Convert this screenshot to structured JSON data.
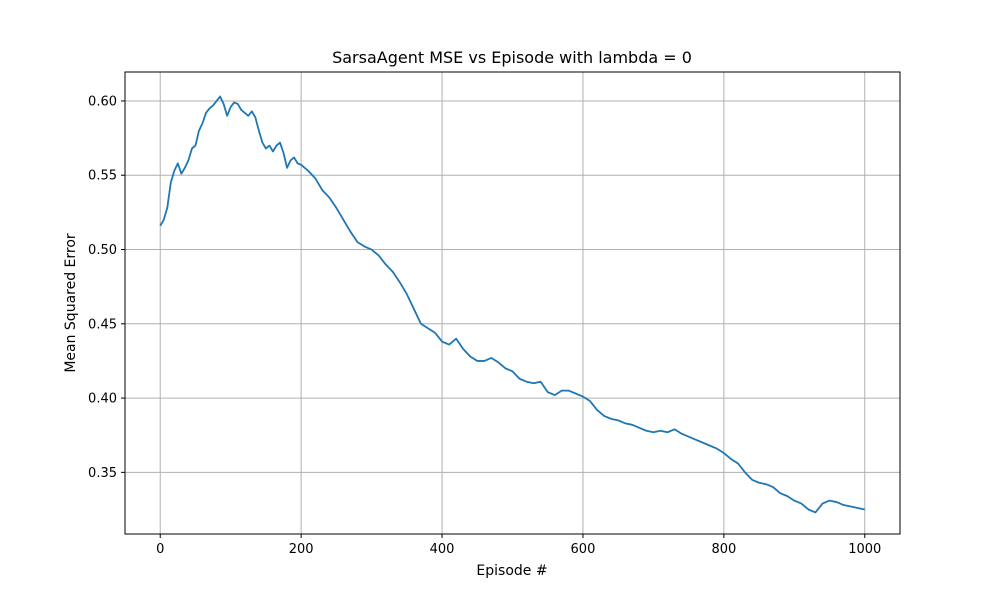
{
  "chart_data": {
    "type": "line",
    "title": "SarsaAgent MSE vs Episode with lambda = 0",
    "xlabel": "Episode #",
    "ylabel": "Mean Squared Error",
    "xlim": [
      -50,
      1050
    ],
    "ylim": [
      0.3085,
      0.6195
    ],
    "xticks": [
      0,
      200,
      400,
      600,
      800,
      1000
    ],
    "xtick_labels": [
      "0",
      "200",
      "400",
      "600",
      "800",
      "1000"
    ],
    "yticks": [
      0.35,
      0.4,
      0.45,
      0.5,
      0.55,
      0.6
    ],
    "ytick_labels": [
      "0.35",
      "0.40",
      "0.45",
      "0.50",
      "0.55",
      "0.60"
    ],
    "grid": true,
    "line_color": "#1f77b4",
    "grid_color": "#b0b0b0",
    "series": [
      {
        "x": [
          0,
          5,
          10,
          15,
          20,
          25,
          30,
          35,
          40,
          45,
          50,
          55,
          60,
          65,
          70,
          75,
          80,
          85,
          90,
          95,
          100,
          105,
          110,
          115,
          120,
          125,
          130,
          135,
          140,
          145,
          150,
          155,
          160,
          165,
          170,
          175,
          180,
          185,
          190,
          195,
          200,
          210,
          220,
          230,
          240,
          250,
          260,
          270,
          280,
          290,
          300,
          310,
          320,
          330,
          340,
          350,
          360,
          370,
          380,
          390,
          400,
          410,
          420,
          430,
          440,
          450,
          460,
          470,
          480,
          490,
          500,
          510,
          520,
          530,
          540,
          550,
          560,
          570,
          580,
          590,
          600,
          610,
          620,
          630,
          640,
          650,
          660,
          670,
          680,
          690,
          700,
          710,
          720,
          730,
          740,
          750,
          760,
          770,
          780,
          790,
          800,
          810,
          820,
          830,
          840,
          850,
          860,
          870,
          880,
          890,
          900,
          910,
          920,
          930,
          940,
          950,
          960,
          970,
          980,
          990,
          1000
        ],
        "values": [
          0.516,
          0.52,
          0.528,
          0.545,
          0.553,
          0.558,
          0.551,
          0.555,
          0.56,
          0.568,
          0.57,
          0.58,
          0.585,
          0.592,
          0.595,
          0.597,
          0.6,
          0.603,
          0.598,
          0.59,
          0.596,
          0.599,
          0.598,
          0.594,
          0.592,
          0.59,
          0.593,
          0.589,
          0.58,
          0.572,
          0.568,
          0.57,
          0.566,
          0.57,
          0.572,
          0.565,
          0.555,
          0.56,
          0.562,
          0.558,
          0.557,
          0.553,
          0.548,
          0.54,
          0.535,
          0.528,
          0.52,
          0.512,
          0.505,
          0.502,
          0.5,
          0.496,
          0.49,
          0.485,
          0.478,
          0.47,
          0.46,
          0.45,
          0.447,
          0.444,
          0.438,
          0.436,
          0.44,
          0.433,
          0.428,
          0.425,
          0.425,
          0.427,
          0.424,
          0.42,
          0.418,
          0.413,
          0.411,
          0.41,
          0.411,
          0.404,
          0.402,
          0.405,
          0.405,
          0.403,
          0.401,
          0.398,
          0.392,
          0.388,
          0.386,
          0.385,
          0.383,
          0.382,
          0.38,
          0.378,
          0.377,
          0.378,
          0.377,
          0.379,
          0.376,
          0.374,
          0.372,
          0.37,
          0.368,
          0.366,
          0.363,
          0.359,
          0.356,
          0.35,
          0.345,
          0.343,
          0.342,
          0.34,
          0.336,
          0.334,
          0.331,
          0.329,
          0.325,
          0.323,
          0.329,
          0.331,
          0.33,
          0.328,
          0.327,
          0.326,
          0.325
        ]
      }
    ]
  }
}
